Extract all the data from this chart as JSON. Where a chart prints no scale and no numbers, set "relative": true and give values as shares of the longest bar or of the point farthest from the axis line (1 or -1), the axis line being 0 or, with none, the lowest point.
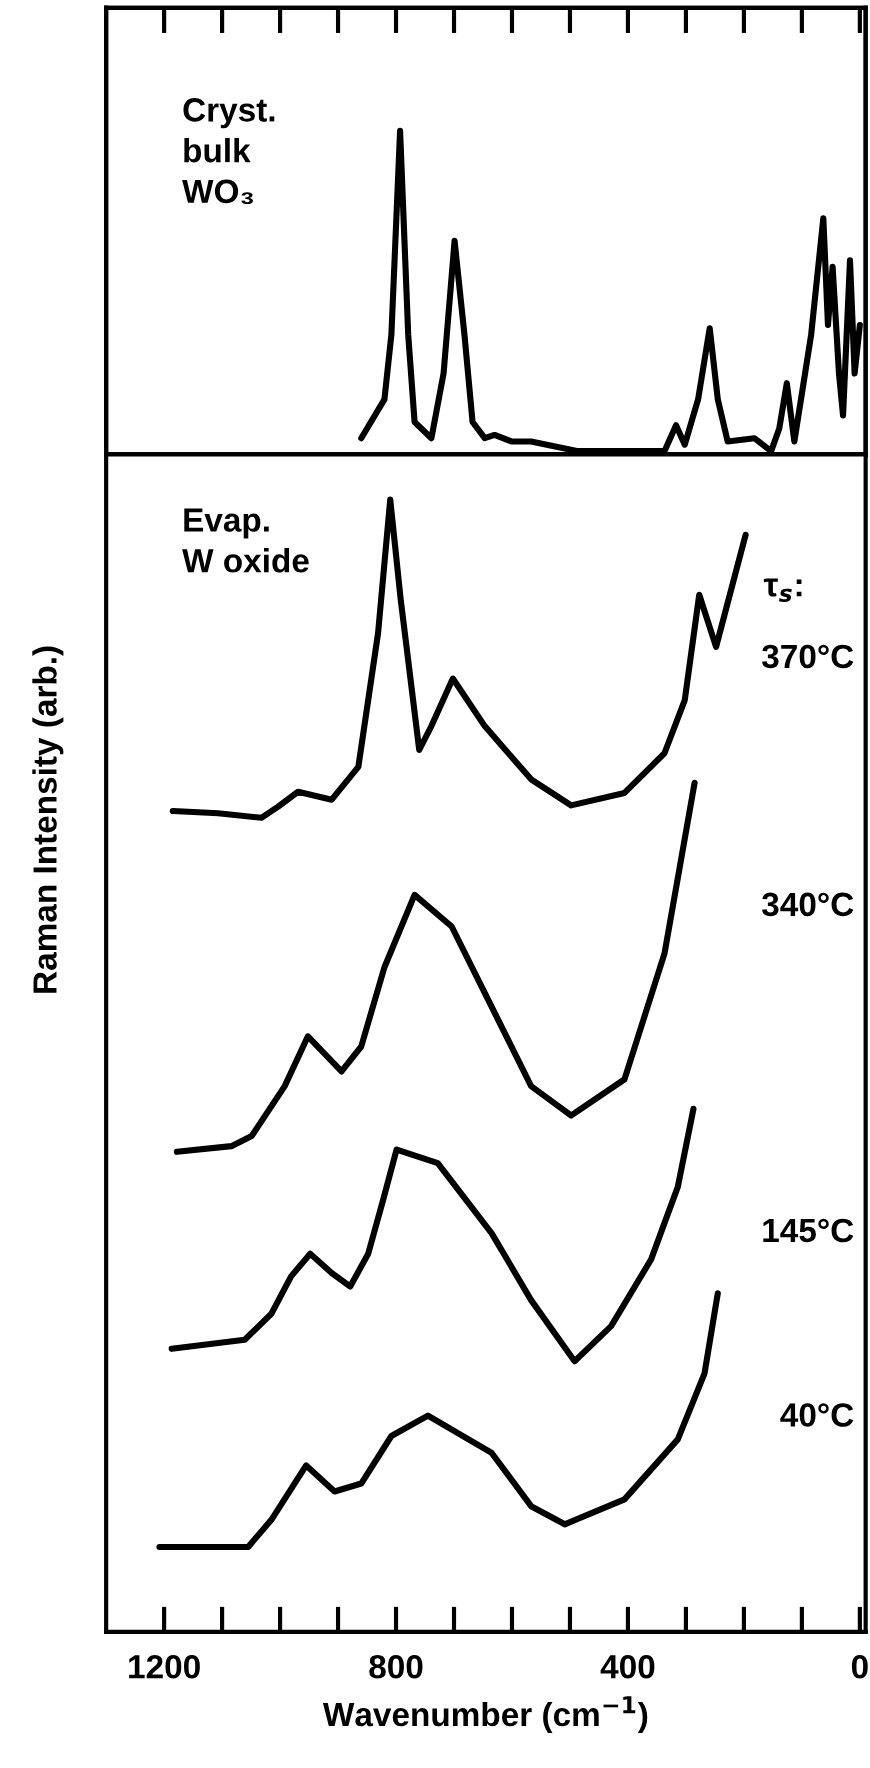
{
  "chart_data": [
    {
      "type": "line",
      "relative": true,
      "xlim": [
        1300,
        -10
      ],
      "tick_labels": false,
      "annotations": [
        "Cryst.\nbulk\nWO₃"
      ],
      "series": [
        {
          "color": "#000000",
          "x": [
            860,
            820,
            808,
            793,
            779,
            768,
            739,
            718,
            699,
            682,
            668,
            647,
            630,
            601,
            567,
            486,
            337,
            317,
            302,
            279,
            259,
            245,
            228,
            182,
            153,
            139,
            126,
            113,
            84,
            63,
            55,
            47,
            36,
            29,
            17,
            9,
            0
          ],
          "values": [
            0.05,
            0.17,
            0.37,
            1.0,
            0.37,
            0.1,
            0.05,
            0.25,
            0.66,
            0.37,
            0.1,
            0.05,
            0.06,
            0.04,
            0.04,
            0.01,
            0.01,
            0.09,
            0.03,
            0.17,
            0.39,
            0.17,
            0.04,
            0.05,
            0.01,
            0.08,
            0.22,
            0.04,
            0.37,
            0.73,
            0.4,
            0.58,
            0.25,
            0.12,
            0.6,
            0.25,
            0.4
          ]
        }
      ]
    },
    {
      "type": "line",
      "relative": true,
      "xlim": [
        1300,
        -10
      ],
      "tick_labels": "x",
      "xlabel": "Wavenumber (cm$^{−1}$)",
      "ylabel": "Raman Intensity (arb.)",
      "xticks": [
        1200,
        {
          "value": 1100,
          "label": null
        },
        {
          "value": 1000,
          "label": null
        },
        {
          "value": 900,
          "label": null
        },
        800,
        {
          "value": 700,
          "label": null
        },
        {
          "value": 600,
          "label": null
        },
        {
          "value": 500,
          "label": null
        },
        400,
        {
          "value": 300,
          "label": null
        },
        {
          "value": 200,
          "label": null
        },
        {
          "value": 100,
          "label": null
        },
        0
      ],
      "annotations": [
        "Evap.\nW oxide",
        "τ$_{s}$:"
      ],
      "series": [
        {
          "name": "370°C",
          "color": "#000000",
          "x": [
            1185,
            1107,
            1032,
            1003,
            969,
            911,
            865,
            831,
            810,
            792,
            760,
            739,
            702,
            647,
            567,
            498,
            406,
            337,
            302,
            277,
            248,
            197
          ],
          "values": [
            0.725,
            0.723,
            0.719,
            0.729,
            0.742,
            0.735,
            0.764,
            0.882,
            1.0,
            0.912,
            0.779,
            0.8,
            0.842,
            0.8,
            0.753,
            0.73,
            0.741,
            0.776,
            0.823,
            0.916,
            0.87,
            0.969
          ]
        },
        {
          "name": "340°C",
          "color": "#000000",
          "x": [
            1178,
            1084,
            1049,
            992,
            952,
            894,
            860,
            820,
            768,
            704,
            635,
            567,
            498,
            406,
            337,
            285
          ],
          "values": [
            0.424,
            0.429,
            0.438,
            0.482,
            0.526,
            0.495,
            0.517,
            0.587,
            0.651,
            0.623,
            0.552,
            0.482,
            0.456,
            0.488,
            0.599,
            0.75
          ]
        },
        {
          "name": "145°C",
          "color": "#000000",
          "x": [
            1187,
            1061,
            1015,
            981,
            948,
            911,
            879,
            848,
            822,
            799,
            728,
            635,
            567,
            492,
            429,
            360,
            314,
            287
          ],
          "values": [
            0.25,
            0.258,
            0.281,
            0.314,
            0.334,
            0.317,
            0.305,
            0.334,
            0.382,
            0.426,
            0.414,
            0.352,
            0.293,
            0.239,
            0.27,
            0.329,
            0.393,
            0.462
          ]
        },
        {
          "name": "40°C",
          "color": "#000000",
          "x": [
            1208,
            1055,
            1015,
            955,
            906,
            860,
            808,
            745,
            635,
            567,
            509,
            406,
            314,
            268,
            245
          ],
          "values": [
            0.075,
            0.075,
            0.099,
            0.147,
            0.124,
            0.131,
            0.173,
            0.191,
            0.158,
            0.111,
            0.095,
            0.117,
            0.17,
            0.228,
            0.299
          ]
        }
      ]
    }
  ]
}
